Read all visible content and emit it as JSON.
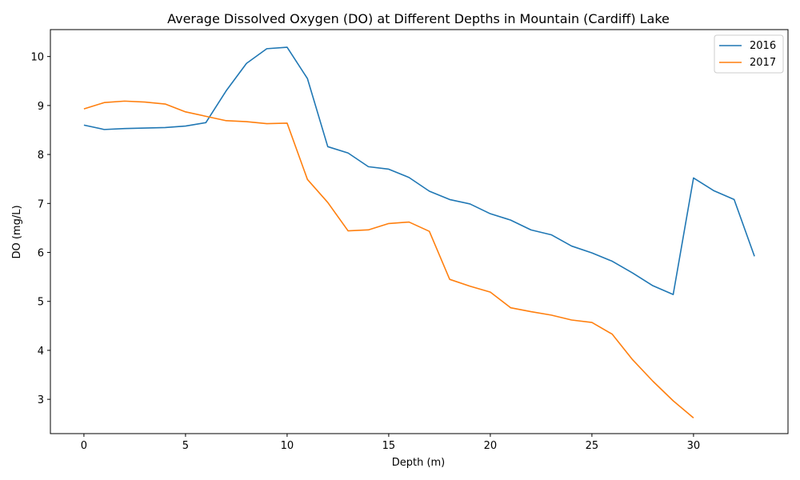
{
  "chart_data": {
    "type": "line",
    "title": "Average Dissolved Oxygen (DO) at Different Depths in Mountain (Cardiff) Lake",
    "xlabel": "Depth (m)",
    "ylabel": "DO (mg/L)",
    "xlim": [
      -1.65,
      34.65
    ],
    "ylim": [
      2.3,
      10.55
    ],
    "xticks": [
      0,
      5,
      10,
      15,
      20,
      25,
      30
    ],
    "yticks": [
      3,
      4,
      5,
      6,
      7,
      8,
      9,
      10
    ],
    "grid": false,
    "legend_position": "top-right",
    "series": [
      {
        "name": "2016",
        "color": "#1f77b4",
        "x": [
          0,
          1,
          2,
          3,
          4,
          5,
          6,
          7,
          8,
          9,
          10,
          11,
          12,
          13,
          14,
          15,
          16,
          17,
          18,
          19,
          20,
          21,
          22,
          23,
          24,
          25,
          26,
          27,
          28,
          29,
          30,
          31,
          32,
          33
        ],
        "y": [
          8.6,
          8.51,
          8.53,
          8.54,
          8.55,
          8.58,
          8.65,
          9.3,
          9.86,
          10.16,
          10.19,
          9.55,
          8.16,
          8.03,
          7.75,
          7.7,
          7.53,
          7.25,
          7.08,
          6.99,
          6.79,
          6.66,
          6.46,
          6.36,
          6.13,
          5.99,
          5.82,
          5.58,
          5.32,
          5.14,
          7.52,
          7.26,
          7.08,
          5.92
        ]
      },
      {
        "name": "2017",
        "color": "#ff7f0e",
        "x": [
          0,
          1,
          2,
          3,
          4,
          5,
          6,
          7,
          8,
          9,
          10,
          11,
          12,
          13,
          14,
          15,
          16,
          17,
          18,
          19,
          20,
          21,
          22,
          23,
          24,
          25,
          26,
          27,
          28,
          29,
          30
        ],
        "y": [
          8.93,
          9.06,
          9.09,
          9.07,
          9.03,
          8.87,
          8.78,
          8.69,
          8.67,
          8.63,
          8.64,
          7.49,
          7.02,
          6.44,
          6.46,
          6.59,
          6.62,
          6.43,
          5.45,
          5.31,
          5.19,
          4.87,
          4.79,
          4.72,
          4.62,
          4.57,
          4.33,
          3.81,
          3.37,
          2.97,
          2.62
        ]
      }
    ]
  }
}
